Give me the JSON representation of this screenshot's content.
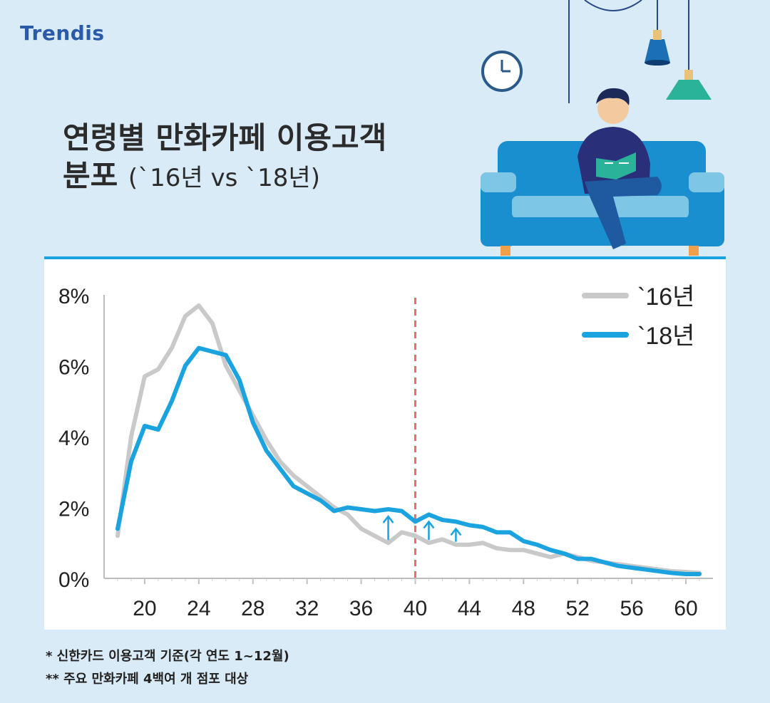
{
  "brand": {
    "logo": "Trendis"
  },
  "title": {
    "line1": "연령별 만화카페 이용고객",
    "line2": "분포",
    "line2_sub": "(`16년 vs `18년)"
  },
  "notes": [
    "* 신한카드 이용고객 기준(각 연도 1~12월)",
    "** 주요 만화카페 4백여 개 점포 대상"
  ],
  "chart_data": {
    "type": "line",
    "title": "",
    "xlabel": "",
    "ylabel": "",
    "x_ticks": [
      20,
      24,
      28,
      32,
      36,
      40,
      44,
      48,
      52,
      56,
      60
    ],
    "y_ticks": [
      "0%",
      "2%",
      "4%",
      "6%",
      "8%"
    ],
    "xlim": [
      17,
      62
    ],
    "ylim": [
      0,
      8
    ],
    "marker_line_x": 40,
    "legend_position": "top-right",
    "x": [
      18,
      19,
      20,
      21,
      22,
      23,
      24,
      25,
      26,
      27,
      28,
      29,
      30,
      31,
      32,
      33,
      34,
      35,
      36,
      37,
      38,
      39,
      40,
      41,
      42,
      43,
      44,
      45,
      46,
      47,
      48,
      49,
      50,
      51,
      52,
      53,
      54,
      55,
      56,
      57,
      58,
      59,
      60,
      61
    ],
    "series": [
      {
        "name": "`16년",
        "color": "#c9c9c9",
        "values": [
          1.2,
          4.0,
          5.7,
          5.9,
          6.5,
          7.4,
          7.7,
          7.2,
          6.0,
          5.3,
          4.6,
          3.9,
          3.3,
          2.9,
          2.6,
          2.3,
          2.0,
          1.8,
          1.4,
          1.2,
          1.0,
          1.3,
          1.2,
          1.0,
          1.1,
          0.95,
          0.95,
          1.0,
          0.85,
          0.8,
          0.8,
          0.7,
          0.6,
          0.7,
          0.6,
          0.5,
          0.45,
          0.4,
          0.35,
          0.3,
          0.25,
          0.2,
          0.18,
          0.15
        ]
      },
      {
        "name": "`18년",
        "color": "#1aa3df",
        "values": [
          1.4,
          3.3,
          4.3,
          4.2,
          5.0,
          6.0,
          6.5,
          6.4,
          6.3,
          5.6,
          4.4,
          3.6,
          3.1,
          2.6,
          2.4,
          2.2,
          1.9,
          2.0,
          1.95,
          1.9,
          1.95,
          1.9,
          1.6,
          1.8,
          1.65,
          1.6,
          1.5,
          1.45,
          1.3,
          1.3,
          1.05,
          0.95,
          0.8,
          0.7,
          0.55,
          0.55,
          0.45,
          0.35,
          0.3,
          0.25,
          0.2,
          0.15,
          0.12,
          0.12
        ]
      }
    ],
    "arrows_x": [
      38,
      41,
      43
    ]
  },
  "colors": {
    "accent": "#1aa3df",
    "series16": "#c9c9c9",
    "marker": "#ee6b6b"
  }
}
